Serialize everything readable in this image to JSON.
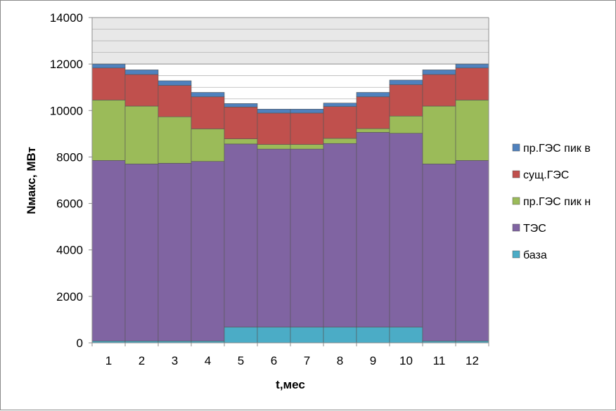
{
  "chart_data": {
    "type": "bar",
    "stacked": true,
    "title": "",
    "xlabel": "t,мес",
    "ylabel": "Nмакс, МВт",
    "ylim": [
      0,
      14000
    ],
    "yticks": [
      0,
      2000,
      4000,
      6000,
      8000,
      10000,
      12000,
      14000
    ],
    "grid": true,
    "legend_position": "right",
    "categories": [
      "1",
      "2",
      "3",
      "4",
      "5",
      "6",
      "7",
      "8",
      "9",
      "10",
      "11",
      "12"
    ],
    "series": [
      {
        "name": "база",
        "color": "#4bacc6",
        "values": [
          80,
          80,
          80,
          80,
          680,
          680,
          680,
          680,
          680,
          680,
          80,
          80
        ]
      },
      {
        "name": "ТЭС",
        "color": "#8064a2",
        "values": [
          7770,
          7620,
          7650,
          7730,
          7880,
          7660,
          7660,
          7900,
          8380,
          8340,
          7620,
          7770
        ]
      },
      {
        "name": "пр.ГЭС пик н",
        "color": "#9bbb59",
        "values": [
          2600,
          2490,
          2000,
          1400,
          220,
          200,
          200,
          220,
          160,
          740,
          2490,
          2600
        ]
      },
      {
        "name": "сущ.ГЭС",
        "color": "#c0504d",
        "values": [
          1380,
          1360,
          1350,
          1380,
          1370,
          1350,
          1350,
          1370,
          1370,
          1350,
          1360,
          1380
        ]
      },
      {
        "name": "пр.ГЭС пик в",
        "color": "#4f81bd",
        "values": [
          170,
          200,
          200,
          190,
          150,
          170,
          170,
          150,
          190,
          200,
          200,
          170
        ]
      }
    ]
  }
}
